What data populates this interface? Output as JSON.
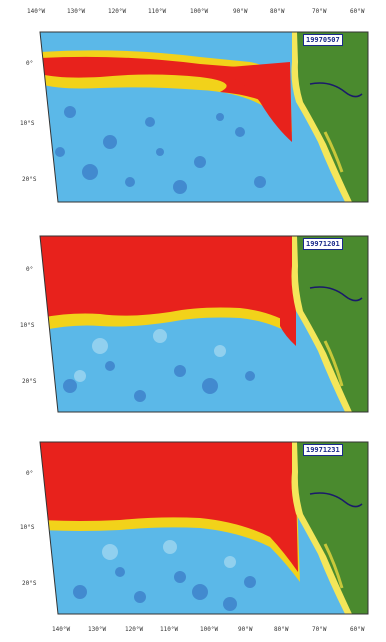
{
  "top_axis_labels": [
    "140°W",
    "130°W",
    "120°W",
    "110°W",
    "100°W",
    "90°W",
    "80°W",
    "70°W",
    "60°W"
  ],
  "bottom_axis_labels": [
    "140°W",
    "130°W",
    "120°W",
    "110°W",
    "100°W",
    "90°W",
    "80°W",
    "70°W",
    "60°W"
  ],
  "panels": [
    {
      "date": "19970507",
      "lat_labels": [
        "0°",
        "10°S",
        "20°S"
      ]
    },
    {
      "date": "19971201",
      "lat_labels": [
        "0°",
        "10°S",
        "20°S"
      ]
    },
    {
      "date": "19971231",
      "lat_labels": [
        "0°",
        "10°S",
        "20°S"
      ]
    }
  ],
  "colors": {
    "ocean": "#5bb8e8",
    "ocean_dark": "#3d7fc9",
    "warm": "#e8221c",
    "transition": "#f2d21a",
    "land": "#4a8a2e",
    "coast": "#f4e65a",
    "river": "#1a1a6a"
  }
}
